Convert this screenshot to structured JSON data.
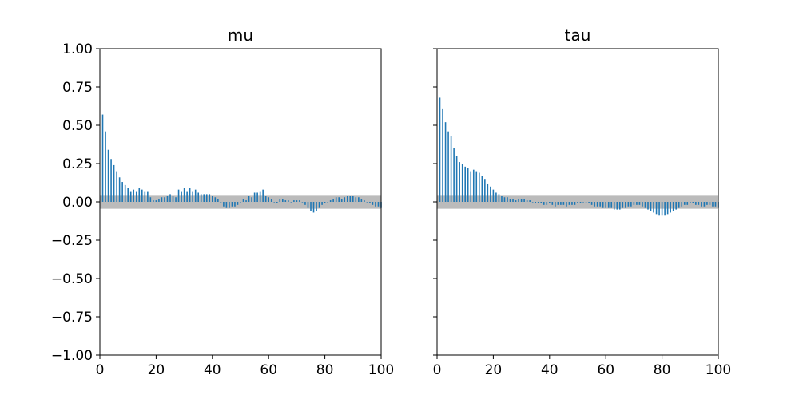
{
  "colors": {
    "bar": "#1f77b4",
    "band": "#bbbbbb",
    "axis": "#000000",
    "background": "#ffffff"
  },
  "chart_data": [
    {
      "type": "bar",
      "title": "mu",
      "xlabel": "",
      "ylabel": "",
      "xlim": [
        0,
        100
      ],
      "ylim": [
        -1.0,
        1.0
      ],
      "x_ticks": [
        "0",
        "20",
        "40",
        "60",
        "80",
        "100"
      ],
      "y_ticks": [
        "1.00",
        "0.75",
        "0.50",
        "0.25",
        "0.00",
        "−0.25",
        "−0.50",
        "−0.75",
        "−1.00"
      ],
      "confidence_band": [
        -0.045,
        0.045
      ],
      "grid": false,
      "lags": [
        1,
        2,
        3,
        4,
        5,
        6,
        7,
        8,
        9,
        10,
        11,
        12,
        13,
        14,
        15,
        16,
        17,
        18,
        19,
        20,
        21,
        22,
        23,
        24,
        25,
        26,
        27,
        28,
        29,
        30,
        31,
        32,
        33,
        34,
        35,
        36,
        37,
        38,
        39,
        40,
        41,
        42,
        43,
        44,
        45,
        46,
        47,
        48,
        49,
        50,
        51,
        52,
        53,
        54,
        55,
        56,
        57,
        58,
        59,
        60,
        61,
        62,
        63,
        64,
        65,
        66,
        67,
        68,
        69,
        70,
        71,
        72,
        73,
        74,
        75,
        76,
        77,
        78,
        79,
        80,
        81,
        82,
        83,
        84,
        85,
        86,
        87,
        88,
        89,
        90,
        91,
        92,
        93,
        94,
        95,
        96,
        97,
        98,
        99,
        100
      ],
      "values": [
        0.57,
        0.46,
        0.34,
        0.28,
        0.24,
        0.2,
        0.16,
        0.13,
        0.11,
        0.09,
        0.07,
        0.08,
        0.07,
        0.09,
        0.08,
        0.07,
        0.07,
        0.03,
        0.01,
        0.01,
        0.02,
        0.03,
        0.03,
        0.04,
        0.05,
        0.04,
        0.03,
        0.08,
        0.07,
        0.09,
        0.07,
        0.09,
        0.07,
        0.08,
        0.06,
        0.05,
        0.05,
        0.05,
        0.05,
        0.04,
        0.03,
        0.02,
        -0.01,
        -0.03,
        -0.04,
        -0.04,
        -0.03,
        -0.03,
        -0.02,
        0.0,
        0.02,
        0.01,
        0.04,
        0.03,
        0.06,
        0.06,
        0.07,
        0.08,
        0.04,
        0.03,
        0.02,
        0.0,
        -0.01,
        0.02,
        0.02,
        0.01,
        0.01,
        0.0,
        0.01,
        0.01,
        0.01,
        0.0,
        -0.02,
        -0.04,
        -0.06,
        -0.07,
        -0.06,
        -0.04,
        -0.02,
        -0.01,
        0.0,
        0.01,
        0.02,
        0.03,
        0.03,
        0.02,
        0.03,
        0.04,
        0.04,
        0.04,
        0.03,
        0.03,
        0.02,
        0.01,
        0.0,
        -0.01,
        -0.02,
        -0.03,
        -0.03,
        -0.04
      ]
    },
    {
      "type": "bar",
      "title": "tau",
      "xlabel": "",
      "ylabel": "",
      "xlim": [
        0,
        100
      ],
      "ylim": [
        -1.0,
        1.0
      ],
      "x_ticks": [
        "0",
        "20",
        "40",
        "60",
        "80",
        "100"
      ],
      "y_ticks": [],
      "confidence_band": [
        -0.045,
        0.045
      ],
      "grid": false,
      "lags": [
        1,
        2,
        3,
        4,
        5,
        6,
        7,
        8,
        9,
        10,
        11,
        12,
        13,
        14,
        15,
        16,
        17,
        18,
        19,
        20,
        21,
        22,
        23,
        24,
        25,
        26,
        27,
        28,
        29,
        30,
        31,
        32,
        33,
        34,
        35,
        36,
        37,
        38,
        39,
        40,
        41,
        42,
        43,
        44,
        45,
        46,
        47,
        48,
        49,
        50,
        51,
        52,
        53,
        54,
        55,
        56,
        57,
        58,
        59,
        60,
        61,
        62,
        63,
        64,
        65,
        66,
        67,
        68,
        69,
        70,
        71,
        72,
        73,
        74,
        75,
        76,
        77,
        78,
        79,
        80,
        81,
        82,
        83,
        84,
        85,
        86,
        87,
        88,
        89,
        90,
        91,
        92,
        93,
        94,
        95,
        96,
        97,
        98,
        99,
        100
      ],
      "values": [
        0.68,
        0.61,
        0.52,
        0.46,
        0.43,
        0.35,
        0.3,
        0.26,
        0.25,
        0.23,
        0.22,
        0.2,
        0.21,
        0.2,
        0.19,
        0.17,
        0.15,
        0.12,
        0.1,
        0.08,
        0.06,
        0.05,
        0.04,
        0.03,
        0.03,
        0.02,
        0.02,
        0.01,
        0.02,
        0.02,
        0.02,
        0.01,
        0.01,
        0.0,
        -0.01,
        -0.01,
        -0.01,
        -0.02,
        -0.02,
        -0.01,
        -0.02,
        -0.03,
        -0.02,
        -0.02,
        -0.02,
        -0.03,
        -0.02,
        -0.02,
        -0.02,
        -0.01,
        -0.01,
        0.0,
        0.0,
        -0.01,
        -0.02,
        -0.03,
        -0.03,
        -0.03,
        -0.04,
        -0.04,
        -0.04,
        -0.04,
        -0.05,
        -0.05,
        -0.05,
        -0.04,
        -0.04,
        -0.03,
        -0.03,
        -0.02,
        -0.02,
        -0.02,
        -0.03,
        -0.04,
        -0.05,
        -0.06,
        -0.07,
        -0.08,
        -0.09,
        -0.09,
        -0.09,
        -0.08,
        -0.07,
        -0.06,
        -0.05,
        -0.04,
        -0.03,
        -0.02,
        -0.02,
        -0.01,
        -0.01,
        -0.02,
        -0.02,
        -0.03,
        -0.03,
        -0.02,
        -0.02,
        -0.03,
        -0.03,
        -0.04
      ]
    }
  ]
}
